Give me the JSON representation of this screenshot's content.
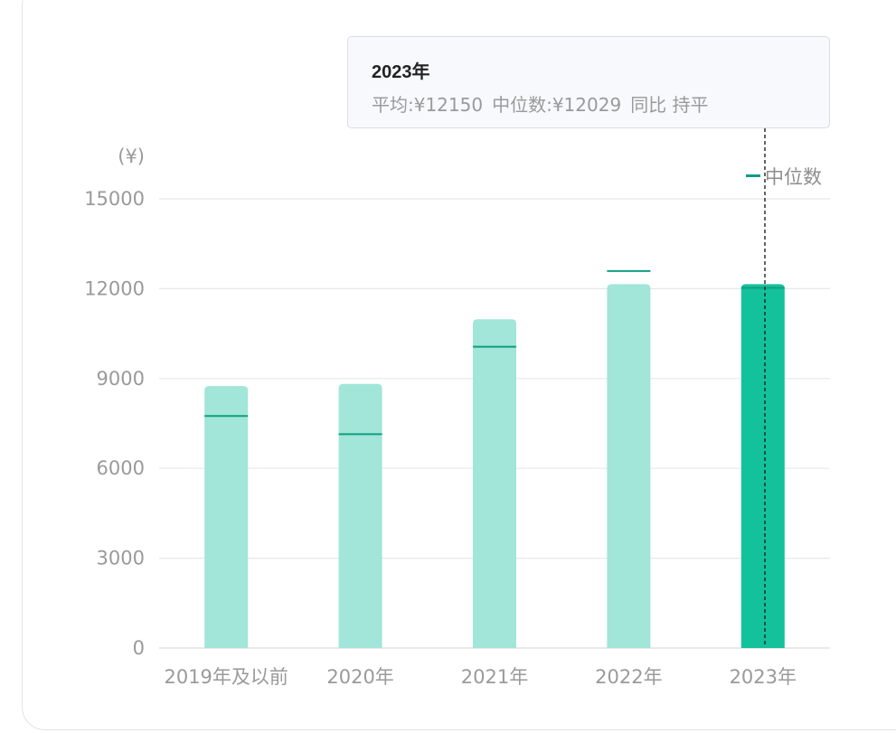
{
  "tooltip": {
    "title": "2023年",
    "avg_label": "平均:¥12150",
    "median_label": "中位数:¥12029",
    "yoy_label": "同比 持平"
  },
  "colors": {
    "bar": "#a1e6d8",
    "bar_highlight": "#13c29b",
    "median_line": "#0f9e80",
    "grid": "#e8e8e8"
  },
  "chart_data": {
    "type": "bar",
    "unit_label": "(¥)",
    "categories": [
      "2019年及以前",
      "2020年",
      "2021年",
      "2022年",
      "2023年"
    ],
    "series": [
      {
        "values": [
          8750,
          8820,
          10980,
          12150,
          12150
        ]
      },
      {
        "name": "中位数",
        "values": [
          7750,
          7140,
          10060,
          12590,
          12029
        ]
      }
    ],
    "highlight_category": "2023年",
    "ylim": [
      0,
      15000
    ],
    "yticks": [
      0,
      3000,
      6000,
      9000,
      12000,
      15000
    ],
    "grid": true,
    "legend_position": "top-right"
  }
}
